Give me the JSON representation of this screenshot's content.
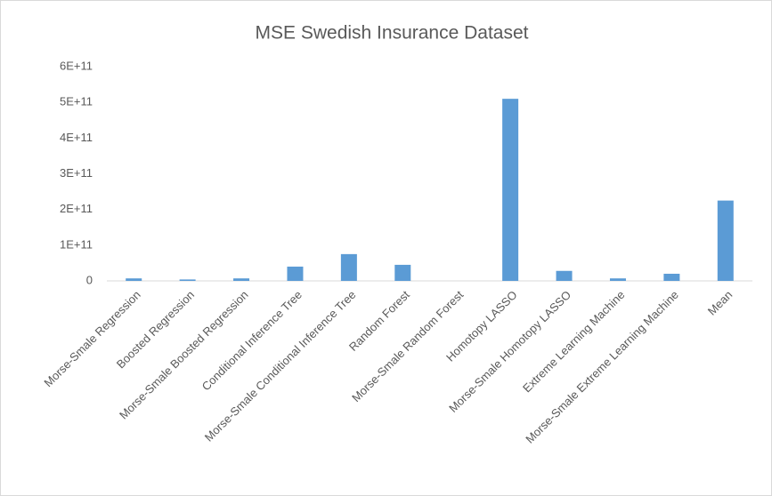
{
  "chart_data": {
    "type": "bar",
    "title": "MSE Swedish Insurance Dataset",
    "categories": [
      "Morse-Smale Regression",
      "Boosted Regression",
      "Morse-Smale Boosted Regression",
      "Conditional Inference Tree",
      "Morse-Smale Conditional Inference Tree",
      "Random Forest",
      "Morse-Smale Random Forest",
      "Homotopy LASSO",
      "Morse-Smale Homotopy LASSO",
      "Extreme Learning Machine",
      "Morse-Smale Extreme Learning Machine",
      "Mean"
    ],
    "values": [
      7000000000,
      4000000000,
      7000000000,
      40000000000,
      75000000000,
      45000000000,
      0,
      510000000000,
      28000000000,
      7000000000,
      20000000000,
      225000000000
    ],
    "color": "#5b9bd5",
    "ylim": [
      0,
      600000000000
    ],
    "yticks": [
      0,
      {
        "value": 100000000000,
        "label": "1E+11"
      },
      {
        "value": 200000000000,
        "label": "2E+11"
      },
      {
        "value": 300000000000,
        "label": "3E+11"
      },
      {
        "value": 400000000000,
        "label": "4E+11"
      },
      {
        "value": 500000000000,
        "label": "5E+11"
      },
      {
        "value": 600000000000,
        "label": "6E+11"
      }
    ],
    "grid": false
  }
}
